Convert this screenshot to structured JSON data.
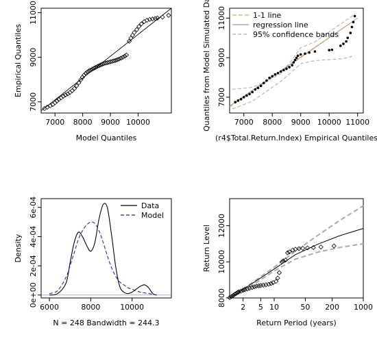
{
  "chart_data": [
    {
      "type": "scatter",
      "xlabel": "Model Quantiles",
      "ylabel": "Empirical Quantiles",
      "xlim": [
        6500,
        11200
      ],
      "ylim": [
        6500,
        11200
      ],
      "xticks": [
        "7000",
        "8000",
        "9000",
        "10000"
      ],
      "yticks": [
        "7000",
        "9000",
        "11000"
      ],
      "points": [
        [
          6620,
          6700
        ],
        [
          6720,
          6760
        ],
        [
          6830,
          6830
        ],
        [
          6920,
          6880
        ],
        [
          7000,
          6960
        ],
        [
          7070,
          7040
        ],
        [
          7140,
          7110
        ],
        [
          7220,
          7180
        ],
        [
          7300,
          7250
        ],
        [
          7380,
          7310
        ],
        [
          7460,
          7360
        ],
        [
          7540,
          7420
        ],
        [
          7620,
          7500
        ],
        [
          7700,
          7600
        ],
        [
          7780,
          7720
        ],
        [
          7860,
          7860
        ],
        [
          7930,
          7990
        ],
        [
          7990,
          8100
        ],
        [
          8050,
          8200
        ],
        [
          8110,
          8280
        ],
        [
          8170,
          8340
        ],
        [
          8230,
          8390
        ],
        [
          8290,
          8430
        ],
        [
          8350,
          8470
        ],
        [
          8410,
          8510
        ],
        [
          8470,
          8550
        ],
        [
          8530,
          8590
        ],
        [
          8590,
          8620
        ],
        [
          8650,
          8660
        ],
        [
          8710,
          8690
        ],
        [
          8770,
          8720
        ],
        [
          8830,
          8740
        ],
        [
          8890,
          8760
        ],
        [
          8950,
          8780
        ],
        [
          9010,
          8800
        ],
        [
          9070,
          8820
        ],
        [
          9130,
          8840
        ],
        [
          9190,
          8860
        ],
        [
          9250,
          8890
        ],
        [
          9310,
          8920
        ],
        [
          9380,
          8960
        ],
        [
          9450,
          9000
        ],
        [
          9520,
          9050
        ],
        [
          9580,
          9100
        ],
        [
          9680,
          9720
        ],
        [
          9740,
          9860
        ],
        [
          9800,
          9990
        ],
        [
          9860,
          10110
        ],
        [
          9950,
          10240
        ],
        [
          10030,
          10380
        ],
        [
          10120,
          10500
        ],
        [
          10220,
          10600
        ],
        [
          10320,
          10660
        ],
        [
          10420,
          10700
        ],
        [
          10520,
          10720
        ],
        [
          10620,
          10740
        ],
        [
          10700,
          10760
        ],
        [
          10880,
          10800
        ],
        [
          11100,
          10880
        ]
      ],
      "reference_line": [
        [
          6500,
          6600
        ],
        [
          11200,
          11200
        ]
      ]
    },
    {
      "type": "scatter",
      "xlabel": "(r4$Total.Return.Index) Empirical Quantiles",
      "ylabel": "Quantiles from Model Simulated Data",
      "xlim": [
        6500,
        11200
      ],
      "ylim": [
        6200,
        11500
      ],
      "xticks": [
        "7000",
        "8000",
        "9000",
        "10000",
        "11000"
      ],
      "yticks": [
        "7000",
        "9000",
        "11000"
      ],
      "legend": {
        "position": "top-left",
        "entries": [
          "1-1 line",
          "regression line",
          "95% confidence bands"
        ]
      },
      "points": [
        [
          6700,
          6750
        ],
        [
          6800,
          6830
        ],
        [
          6900,
          6900
        ],
        [
          7000,
          7000
        ],
        [
          7100,
          7080
        ],
        [
          7200,
          7160
        ],
        [
          7300,
          7260
        ],
        [
          7400,
          7390
        ],
        [
          7500,
          7470
        ],
        [
          7600,
          7570
        ],
        [
          7700,
          7720
        ],
        [
          7800,
          7840
        ],
        [
          7900,
          7980
        ],
        [
          8000,
          8060
        ],
        [
          8100,
          8150
        ],
        [
          8200,
          8220
        ],
        [
          8300,
          8300
        ],
        [
          8400,
          8370
        ],
        [
          8500,
          8440
        ],
        [
          8600,
          8520
        ],
        [
          8700,
          8620
        ],
        [
          8750,
          8760
        ],
        [
          8800,
          8880
        ],
        [
          8850,
          8990
        ],
        [
          8900,
          9100
        ],
        [
          9000,
          9160
        ],
        [
          9150,
          9200
        ],
        [
          9300,
          9260
        ],
        [
          9500,
          9310
        ],
        [
          10000,
          9380
        ],
        [
          10100,
          9400
        ],
        [
          10400,
          9600
        ],
        [
          10500,
          9700
        ],
        [
          10600,
          9820
        ],
        [
          10650,
          10000
        ],
        [
          10750,
          10250
        ],
        [
          10800,
          10550
        ],
        [
          10850,
          10800
        ],
        [
          10900,
          11100
        ]
      ],
      "line_1_1": [
        [
          6500,
          6500
        ],
        [
          11000,
          11000
        ]
      ],
      "regression_line": [
        [
          6500,
          6560
        ],
        [
          11000,
          11000
        ]
      ],
      "band_upper": [
        [
          6600,
          7400
        ],
        [
          7300,
          7500
        ],
        [
          7800,
          7800
        ],
        [
          8300,
          8200
        ],
        [
          8700,
          8900
        ],
        [
          9000,
          9500
        ],
        [
          9500,
          9800
        ],
        [
          10000,
          10300
        ],
        [
          10500,
          10800
        ],
        [
          10900,
          11200
        ]
      ],
      "band_lower": [
        [
          6600,
          6400
        ],
        [
          7300,
          6800
        ],
        [
          7800,
          7300
        ],
        [
          8300,
          7800
        ],
        [
          8700,
          8300
        ],
        [
          9000,
          8700
        ],
        [
          9500,
          8850
        ],
        [
          10000,
          8900
        ],
        [
          10500,
          8950
        ],
        [
          10900,
          9100
        ]
      ]
    },
    {
      "type": "line",
      "xlabel": "N = 248   Bandwidth = 244.3",
      "ylabel": "Density",
      "xlim": [
        5600,
        11900
      ],
      "ylim": [
        -2e-05,
        0.00066
      ],
      "xticks": [
        "6000",
        "8000",
        "10000"
      ],
      "yticks": [
        "0e+00",
        "2e-04",
        "4e-04",
        "6e-04"
      ],
      "legend": {
        "position": "top-right",
        "entries": [
          "Data",
          "Model"
        ]
      },
      "series": [
        {
          "name": "Data",
          "x": [
            6000,
            6400,
            6800,
            7000,
            7200,
            7400,
            7600,
            7800,
            8000,
            8200,
            8400,
            8600,
            8800,
            9000,
            9200,
            9400,
            9600,
            9800,
            10000,
            10200,
            10400,
            10600,
            10800,
            11000,
            11200
          ],
          "values": [
            0.0,
            1e-05,
            8e-05,
            0.00022,
            0.00036,
            0.00043,
            0.0004,
            0.00034,
            0.0003,
            0.00036,
            0.00052,
            0.00062,
            0.0006,
            0.00042,
            0.0002,
            6e-05,
            2e-05,
            1e-05,
            2e-05,
            4e-05,
            6e-05,
            7e-05,
            5e-05,
            1e-05,
            0.0
          ]
        },
        {
          "name": "Model",
          "x": [
            6000,
            6400,
            6800,
            7000,
            7200,
            7400,
            7600,
            7800,
            8000,
            8200,
            8400,
            8600,
            8800,
            9000,
            9200,
            9400,
            9600,
            9800,
            10000,
            10400,
            10800,
            11200
          ],
          "values": [
            1e-05,
            3e-05,
            0.00012,
            0.0002,
            0.00029,
            0.00038,
            0.00044,
            0.00048,
            0.0005,
            0.00049,
            0.00044,
            0.00036,
            0.00027,
            0.00019,
            0.00013,
            9e-05,
            7e-05,
            5e-05,
            4e-05,
            2e-05,
            1e-05,
            0.0
          ]
        }
      ]
    },
    {
      "type": "scatter",
      "xlabel": "Return Period (years)",
      "ylabel": "Return Level",
      "xscale": "log",
      "xlim": [
        1,
        1000
      ],
      "ylim": [
        8000,
        13500
      ],
      "xticks": [
        {
          "value": 2,
          "label": "2"
        },
        {
          "value": 5,
          "label": "5"
        },
        {
          "value": 10,
          "label": "10"
        },
        {
          "value": 50,
          "label": "50"
        },
        {
          "value": 200,
          "label": "200"
        },
        {
          "value": 1000,
          "label": "1000"
        }
      ],
      "yticks": [
        {
          "value": 8000,
          "label": "8000"
        },
        {
          "value": 10000,
          "label": "10000"
        },
        {
          "value": 12000,
          "label": "12000"
        }
      ],
      "points": [
        [
          1.0,
          8020
        ],
        [
          1.1,
          8080
        ],
        [
          1.2,
          8140
        ],
        [
          1.3,
          8200
        ],
        [
          1.4,
          8250
        ],
        [
          1.5,
          8300
        ],
        [
          1.6,
          8340
        ],
        [
          1.8,
          8380
        ],
        [
          2.0,
          8420
        ],
        [
          2.2,
          8460
        ],
        [
          2.5,
          8500
        ],
        [
          2.8,
          8540
        ],
        [
          3.2,
          8580
        ],
        [
          3.6,
          8620
        ],
        [
          4.0,
          8650
        ],
        [
          4.5,
          8670
        ],
        [
          5.0,
          8690
        ],
        [
          5.7,
          8710
        ],
        [
          6.5,
          8730
        ],
        [
          7.5,
          8760
        ],
        [
          8.5,
          8800
        ],
        [
          9.5,
          8850
        ],
        [
          11,
          8920
        ],
        [
          12,
          9100
        ],
        [
          13,
          9400
        ],
        [
          15,
          10000
        ],
        [
          16,
          10050
        ],
        [
          18,
          10100
        ],
        [
          20,
          10500
        ],
        [
          22,
          10550
        ],
        [
          26,
          10650
        ],
        [
          30,
          10700
        ],
        [
          36,
          10730
        ],
        [
          44,
          10750
        ],
        [
          56,
          10770
        ],
        [
          76,
          10790
        ],
        [
          112,
          10820
        ],
        [
          220,
          10880
        ]
      ],
      "fit_line": [
        [
          1,
          8000
        ],
        [
          3,
          8750
        ],
        [
          10,
          9600
        ],
        [
          30,
          10400
        ],
        [
          100,
          11000
        ],
        [
          300,
          11450
        ],
        [
          1000,
          11850
        ]
      ],
      "ci_upper": [
        [
          1,
          8050
        ],
        [
          3,
          8800
        ],
        [
          10,
          9700
        ],
        [
          30,
          10600
        ],
        [
          100,
          11500
        ],
        [
          300,
          12300
        ],
        [
          1000,
          13100
        ]
      ],
      "ci_lower": [
        [
          1,
          7950
        ],
        [
          3,
          8650
        ],
        [
          10,
          9500
        ],
        [
          30,
          10150
        ],
        [
          100,
          10550
        ],
        [
          300,
          10800
        ],
        [
          1000,
          11000
        ]
      ]
    }
  ]
}
